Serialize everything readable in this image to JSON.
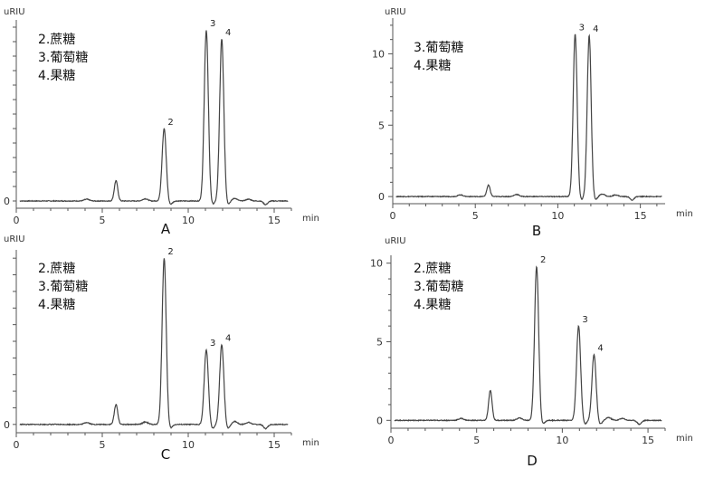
{
  "chart_data": [
    {
      "panel_label": "A",
      "type": "line",
      "ylabel": "uRIU",
      "xlabel": "min",
      "xlim": [
        0,
        16
      ],
      "x_ticks": [
        0,
        5,
        10,
        15
      ],
      "y_tick_labels": [
        "0"
      ],
      "ylim": [
        -0.5,
        12.5
      ],
      "legend": [
        "2.蔗糖",
        "3.葡萄糖",
        "4.果糖"
      ],
      "peaks": [
        {
          "label": "",
          "x": 5.8,
          "y": 1.4
        },
        {
          "label": "2",
          "x": 8.6,
          "y": 5.0
        },
        {
          "label": "3",
          "x": 11.05,
          "y": 11.8
        },
        {
          "label": "4",
          "x": 11.95,
          "y": 11.2
        }
      ],
      "x_minor_ticks": false
    },
    {
      "panel_label": "B",
      "type": "line",
      "ylabel": "uRIU",
      "xlabel": "min",
      "xlim": [
        0,
        16.5
      ],
      "x_ticks": [
        0,
        5,
        10,
        15
      ],
      "y_ticks": [
        0,
        5,
        10
      ],
      "ylim": [
        -0.5,
        12.5
      ],
      "legend": [
        "3.葡萄糖",
        "4.果糖"
      ],
      "peaks": [
        {
          "label": "",
          "x": 5.8,
          "y": 0.8
        },
        {
          "label": "3",
          "x": 11.05,
          "y": 11.4
        },
        {
          "label": "4",
          "x": 11.9,
          "y": 11.3
        }
      ]
    },
    {
      "panel_label": "C",
      "type": "line",
      "ylabel": "uRIU",
      "xlabel": "min",
      "xlim": [
        0,
        16
      ],
      "x_ticks": [
        0,
        5,
        10,
        15
      ],
      "y_tick_labels": [
        "0"
      ],
      "ylim": [
        -0.5,
        10.5
      ],
      "legend": [
        "2.蔗糖",
        "3.葡萄糖",
        "4.果糖"
      ],
      "peaks": [
        {
          "label": "",
          "x": 5.8,
          "y": 1.2
        },
        {
          "label": "2",
          "x": 8.6,
          "y": 10.0
        },
        {
          "label": "3",
          "x": 11.05,
          "y": 4.5
        },
        {
          "label": "4",
          "x": 11.95,
          "y": 4.8
        }
      ]
    },
    {
      "panel_label": "D",
      "type": "line",
      "ylabel": "uRIU",
      "xlabel": "min",
      "xlim": [
        0,
        16
      ],
      "x_ticks": [
        0,
        5,
        10,
        15
      ],
      "y_ticks": [
        0,
        5,
        10
      ],
      "ylim": [
        -0.5,
        10.5
      ],
      "legend": [
        "2.蔗糖",
        "3.葡萄糖",
        "4.果糖"
      ],
      "peaks": [
        {
          "label": "",
          "x": 5.8,
          "y": 1.9
        },
        {
          "label": "2",
          "x": 8.5,
          "y": 9.8
        },
        {
          "label": "3",
          "x": 10.95,
          "y": 6.0
        },
        {
          "label": "4",
          "x": 11.85,
          "y": 4.2
        }
      ]
    }
  ]
}
